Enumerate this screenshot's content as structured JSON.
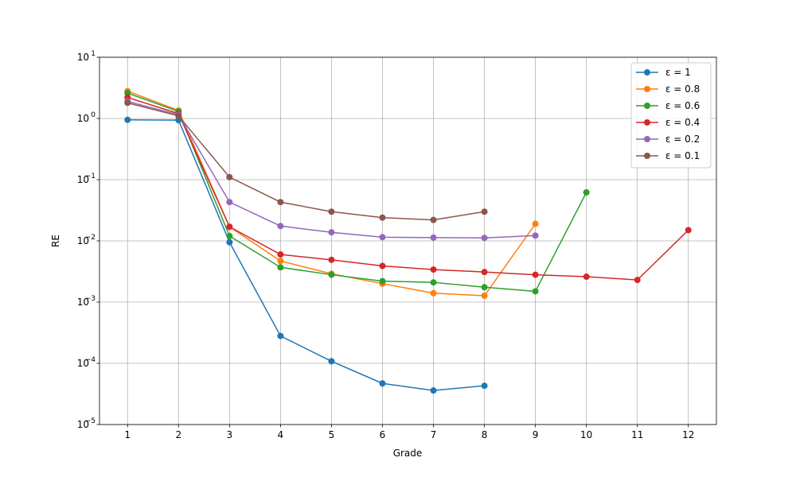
{
  "chart_data": {
    "type": "line",
    "title": "",
    "xlabel": "Grade",
    "ylabel": "RE",
    "yscale": "log",
    "ylim": [
      1e-05,
      10
    ],
    "xlim": [
      0.45,
      12.55
    ],
    "grid": true,
    "legend_position": "top-right",
    "x_ticks": [
      1,
      2,
      3,
      4,
      5,
      6,
      7,
      8,
      9,
      10,
      11,
      12
    ],
    "y_ticks": [
      {
        "value": 1e-05,
        "base": "10",
        "exp": "−5"
      },
      {
        "value": 0.0001,
        "base": "10",
        "exp": "−4"
      },
      {
        "value": 0.001,
        "base": "10",
        "exp": "−3"
      },
      {
        "value": 0.01,
        "base": "10",
        "exp": "−2"
      },
      {
        "value": 0.1,
        "base": "10",
        "exp": "−1"
      },
      {
        "value": 1,
        "base": "10",
        "exp": "0"
      },
      {
        "value": 10,
        "base": "10",
        "exp": "1"
      }
    ],
    "series": [
      {
        "name": "ε = 1",
        "color": "#1f77b4",
        "x": [
          1,
          2,
          3,
          4,
          5,
          6,
          7,
          8
        ],
        "y": [
          0.95,
          0.94,
          0.0095,
          0.00028,
          0.000108,
          4.7e-05,
          3.6e-05,
          4.3e-05
        ]
      },
      {
        "name": "ε = 0.8",
        "color": "#ff7f0e",
        "x": [
          1,
          2,
          3,
          4,
          5,
          6,
          7,
          8,
          9
        ],
        "y": [
          2.8,
          1.35,
          0.017,
          0.0047,
          0.0029,
          0.002,
          0.0014,
          0.00127,
          0.019
        ]
      },
      {
        "name": "ε = 0.6",
        "color": "#2ca02c",
        "x": [
          1,
          2,
          3,
          4,
          5,
          6,
          7,
          8,
          9,
          10
        ],
        "y": [
          2.6,
          1.3,
          0.012,
          0.0037,
          0.0028,
          0.0022,
          0.0021,
          0.00175,
          0.0015,
          0.062
        ]
      },
      {
        "name": "ε = 0.4",
        "color": "#d62728",
        "x": [
          1,
          2,
          3,
          4,
          5,
          6,
          7,
          8,
          9,
          10,
          11,
          12
        ],
        "y": [
          2.2,
          1.2,
          0.017,
          0.006,
          0.0049,
          0.0039,
          0.0034,
          0.0031,
          0.0028,
          0.0026,
          0.0023,
          0.015
        ]
      },
      {
        "name": "ε = 0.2",
        "color": "#9467bd",
        "x": [
          1,
          2,
          3,
          4,
          5,
          6,
          7,
          8,
          9
        ],
        "y": [
          1.9,
          1.15,
          0.043,
          0.0175,
          0.0138,
          0.0115,
          0.0113,
          0.0112,
          0.0122
        ]
      },
      {
        "name": "ε = 0.1",
        "color": "#8c564b",
        "x": [
          1,
          2,
          3,
          4,
          5,
          6,
          7,
          8
        ],
        "y": [
          1.8,
          1.1,
          0.11,
          0.043,
          0.03,
          0.024,
          0.022,
          0.03
        ]
      }
    ]
  }
}
